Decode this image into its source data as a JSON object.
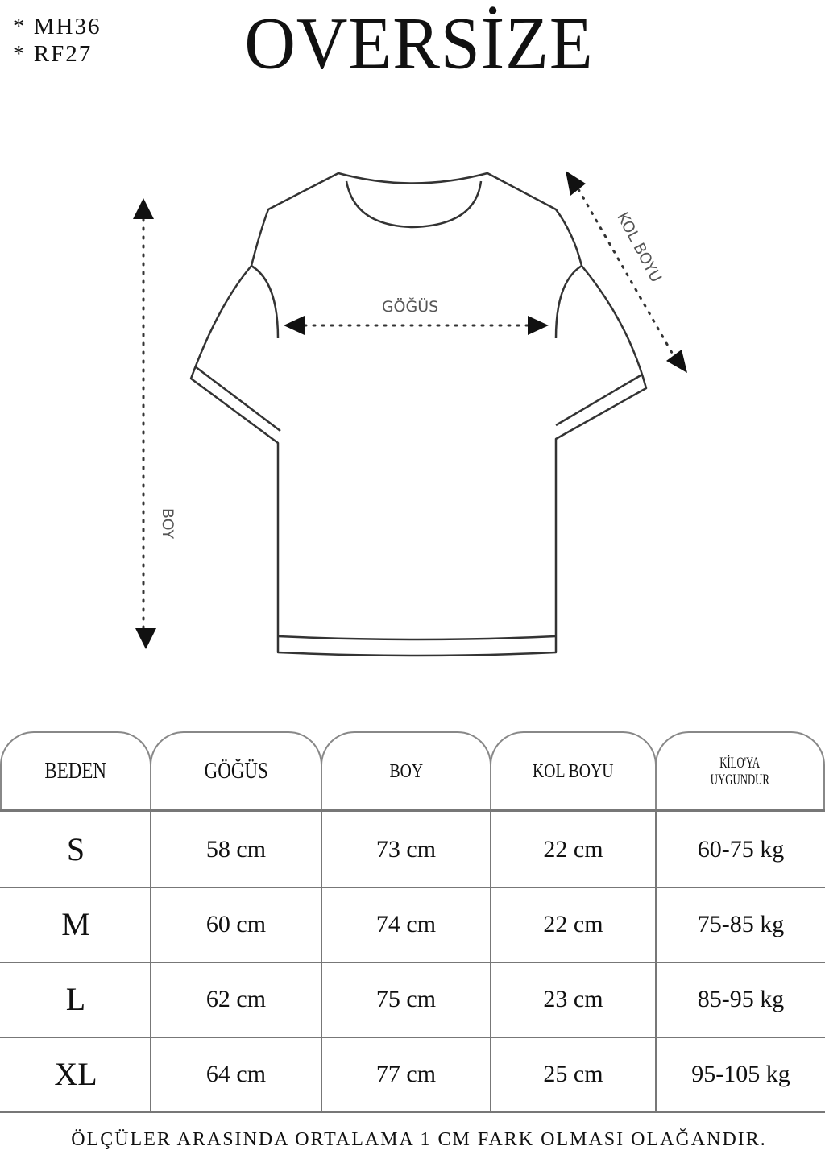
{
  "codes": [
    "*  MH36",
    "*  RF27"
  ],
  "title": "OVERSİZE",
  "diagram": {
    "chest": "GÖĞÜS",
    "length": "BOY",
    "sleeve": "KOL BOYU"
  },
  "table": {
    "headers": [
      "BEDEN",
      "GÖĞÜS",
      "BOY",
      "KOL BOYU",
      "KİLO'YA",
      "UYGUNDUR"
    ],
    "rows": [
      [
        "S",
        "58 cm",
        "73 cm",
        "22  cm",
        "60-75 kg"
      ],
      [
        "M",
        "60 cm",
        "74 cm",
        "22 cm",
        "75-85 kg"
      ],
      [
        "L",
        "62 cm",
        "75 cm",
        "23 cm",
        "85-95 kg"
      ],
      [
        "XL",
        "64 cm",
        "77 cm",
        "25 cm",
        "95-105 kg"
      ]
    ]
  },
  "footer": "ÖLÇÜLER ARASINDA ORTALAMA 1 CM FARK OLMASI OLAĞANDIR."
}
